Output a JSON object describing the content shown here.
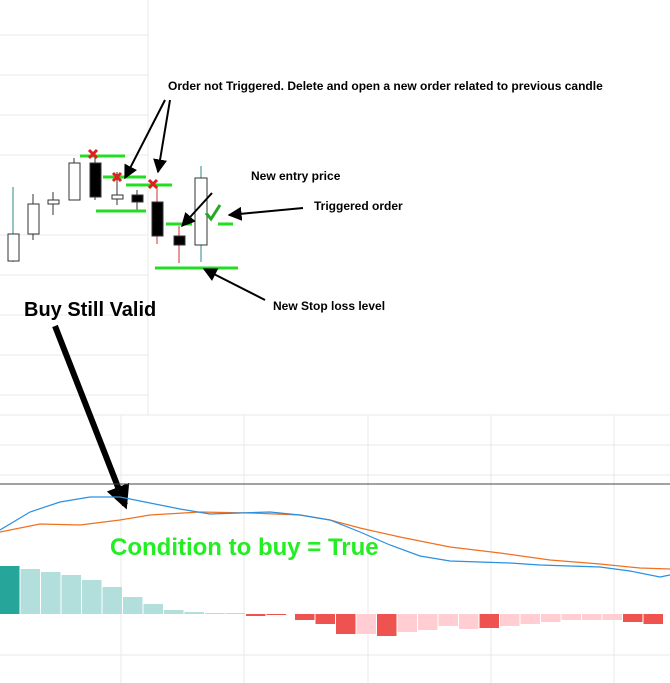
{
  "annotations": {
    "order_not_triggered": "Order not Triggered. Delete and open a new order related to previous candle",
    "new_entry_price": "New entry price",
    "triggered_order": "Triggered order",
    "new_stop_loss": "New Stop loss level",
    "buy_still_valid": "Buy Still Valid",
    "condition": "Condition to buy = True"
  }
}
